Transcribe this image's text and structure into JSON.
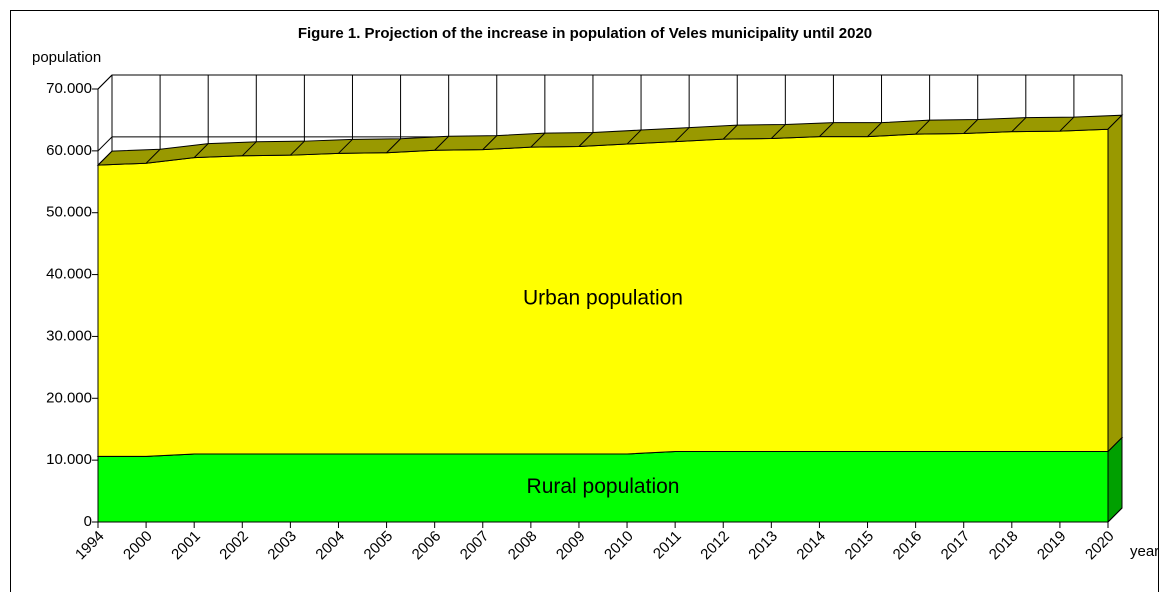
{
  "chart_data": {
    "type": "area3d",
    "title": "Figure 1. Projection of the increase in population of Veles municipality until 2020",
    "y_label": "population",
    "x_label": "year",
    "categories": [
      "1994",
      "2000",
      "2001",
      "2002",
      "2003",
      "2004",
      "2005",
      "2006",
      "2007",
      "2008",
      "2009",
      "2010",
      "2011",
      "2012",
      "2013",
      "2014",
      "2015",
      "2016",
      "2017",
      "2018",
      "2019",
      "2020"
    ],
    "series": [
      {
        "name": "Rural population",
        "color": "#00ff00",
        "dark": "#00a000",
        "values": [
          10600,
          10600,
          11000,
          11000,
          11000,
          11000,
          11000,
          11000,
          11000,
          11000,
          11000,
          11000,
          11400,
          11400,
          11400,
          11400,
          11400,
          11400,
          11400,
          11400,
          11400,
          11400
        ]
      },
      {
        "name": "Urban population",
        "color": "#ffff00",
        "dark": "#999900",
        "values": [
          47100,
          47400,
          47900,
          48200,
          48300,
          48600,
          48700,
          49100,
          49200,
          49600,
          49700,
          50100,
          50100,
          50500,
          50600,
          50900,
          50900,
          51300,
          51400,
          51700,
          51800,
          52100
        ]
      }
    ],
    "ylim": [
      0,
      70000
    ],
    "yticks": [
      0,
      {
        "value": 10000,
        "label": "10.000"
      },
      {
        "value": 20000,
        "label": "20.000"
      },
      {
        "value": 30000,
        "label": "30.000"
      },
      {
        "value": 40000,
        "label": "40.000"
      },
      {
        "value": 50000,
        "label": "50.000"
      },
      {
        "value": 60000,
        "label": "60.000"
      },
      {
        "value": 70000,
        "label": "70.000"
      }
    ],
    "grid": true
  }
}
